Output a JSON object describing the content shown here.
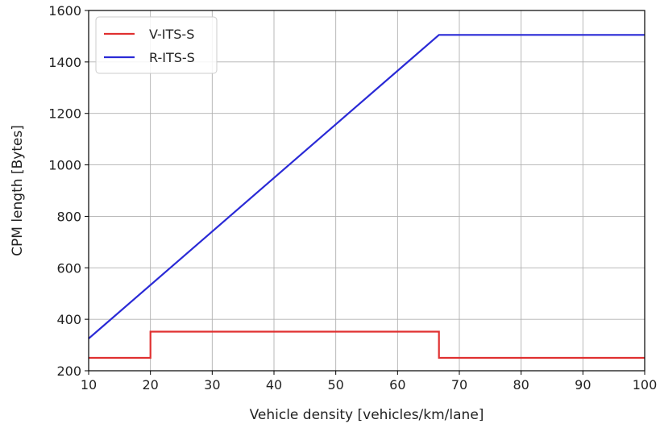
{
  "chart_data": {
    "type": "line",
    "xlabel": "Vehicle density [vehicles/km/lane]",
    "ylabel": "CPM length [Bytes]",
    "xlim": [
      10,
      100
    ],
    "ylim": [
      200,
      1600
    ],
    "xticks": [
      10,
      20,
      30,
      40,
      50,
      60,
      70,
      80,
      90,
      100
    ],
    "yticks": [
      200,
      400,
      600,
      800,
      1000,
      1200,
      1400,
      1600
    ],
    "grid": true,
    "legend_position": "top-left",
    "series": [
      {
        "name": "V-ITS-S",
        "color": "#e03030",
        "x": [
          10,
          20,
          20,
          66.7,
          66.7,
          100
        ],
        "y": [
          250,
          250,
          352,
          352,
          250,
          250
        ]
      },
      {
        "name": "R-ITS-S",
        "color": "#2a2ad6",
        "x": [
          10,
          66.7,
          100
        ],
        "y": [
          325,
          1505,
          1505
        ]
      }
    ]
  }
}
